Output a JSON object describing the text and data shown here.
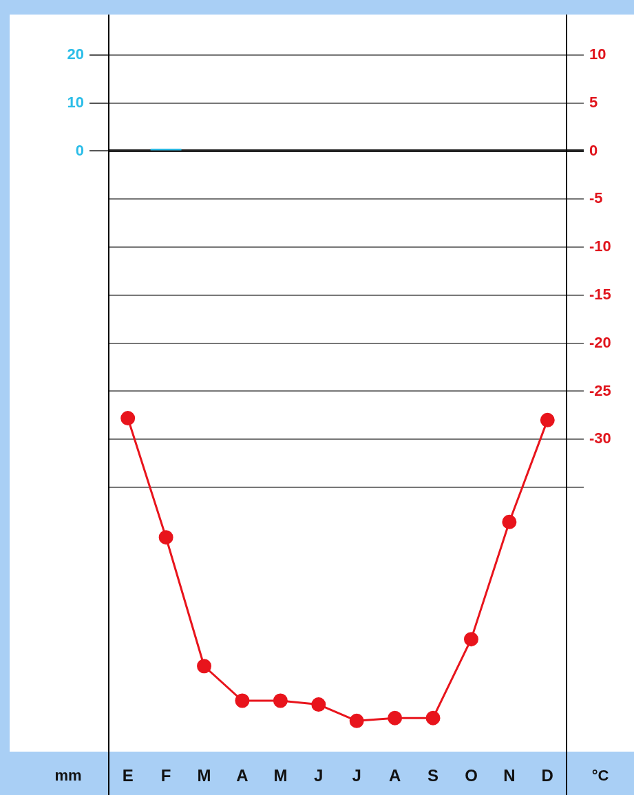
{
  "chart_data": {
    "type": "line",
    "ylabel": "mm",
    "y2label": "°C",
    "categories": [
      "E",
      "F",
      "M",
      "A",
      "M",
      "J",
      "J",
      "A",
      "S",
      "O",
      "N",
      "D"
    ],
    "series": [
      {
        "type": "bar",
        "color": "#29b6e0",
        "values": [
          0,
          0.5,
          0,
          0,
          0,
          0,
          0,
          0,
          0,
          0,
          0,
          0
        ]
      },
      {
        "axis": "y2",
        "color": "#e8141c",
        "marker": "circle",
        "values": [
          -27.8,
          -40.2,
          -53.6,
          -57.2,
          -57.2,
          -57.6,
          -59.3,
          -59.0,
          -59.0,
          -50.8,
          -38.6,
          -28.0
        ]
      }
    ],
    "ylim": [
      -125,
      28.4
    ],
    "yticks": [
      0,
      10,
      20
    ],
    "y2lim": [
      -62.5,
      14.2
    ],
    "y2ticks": [
      {
        "value": -35,
        "label": null
      },
      -30,
      -25,
      -20,
      -15,
      -10,
      -5,
      0,
      5,
      10
    ],
    "grid": "y",
    "legend": false
  }
}
